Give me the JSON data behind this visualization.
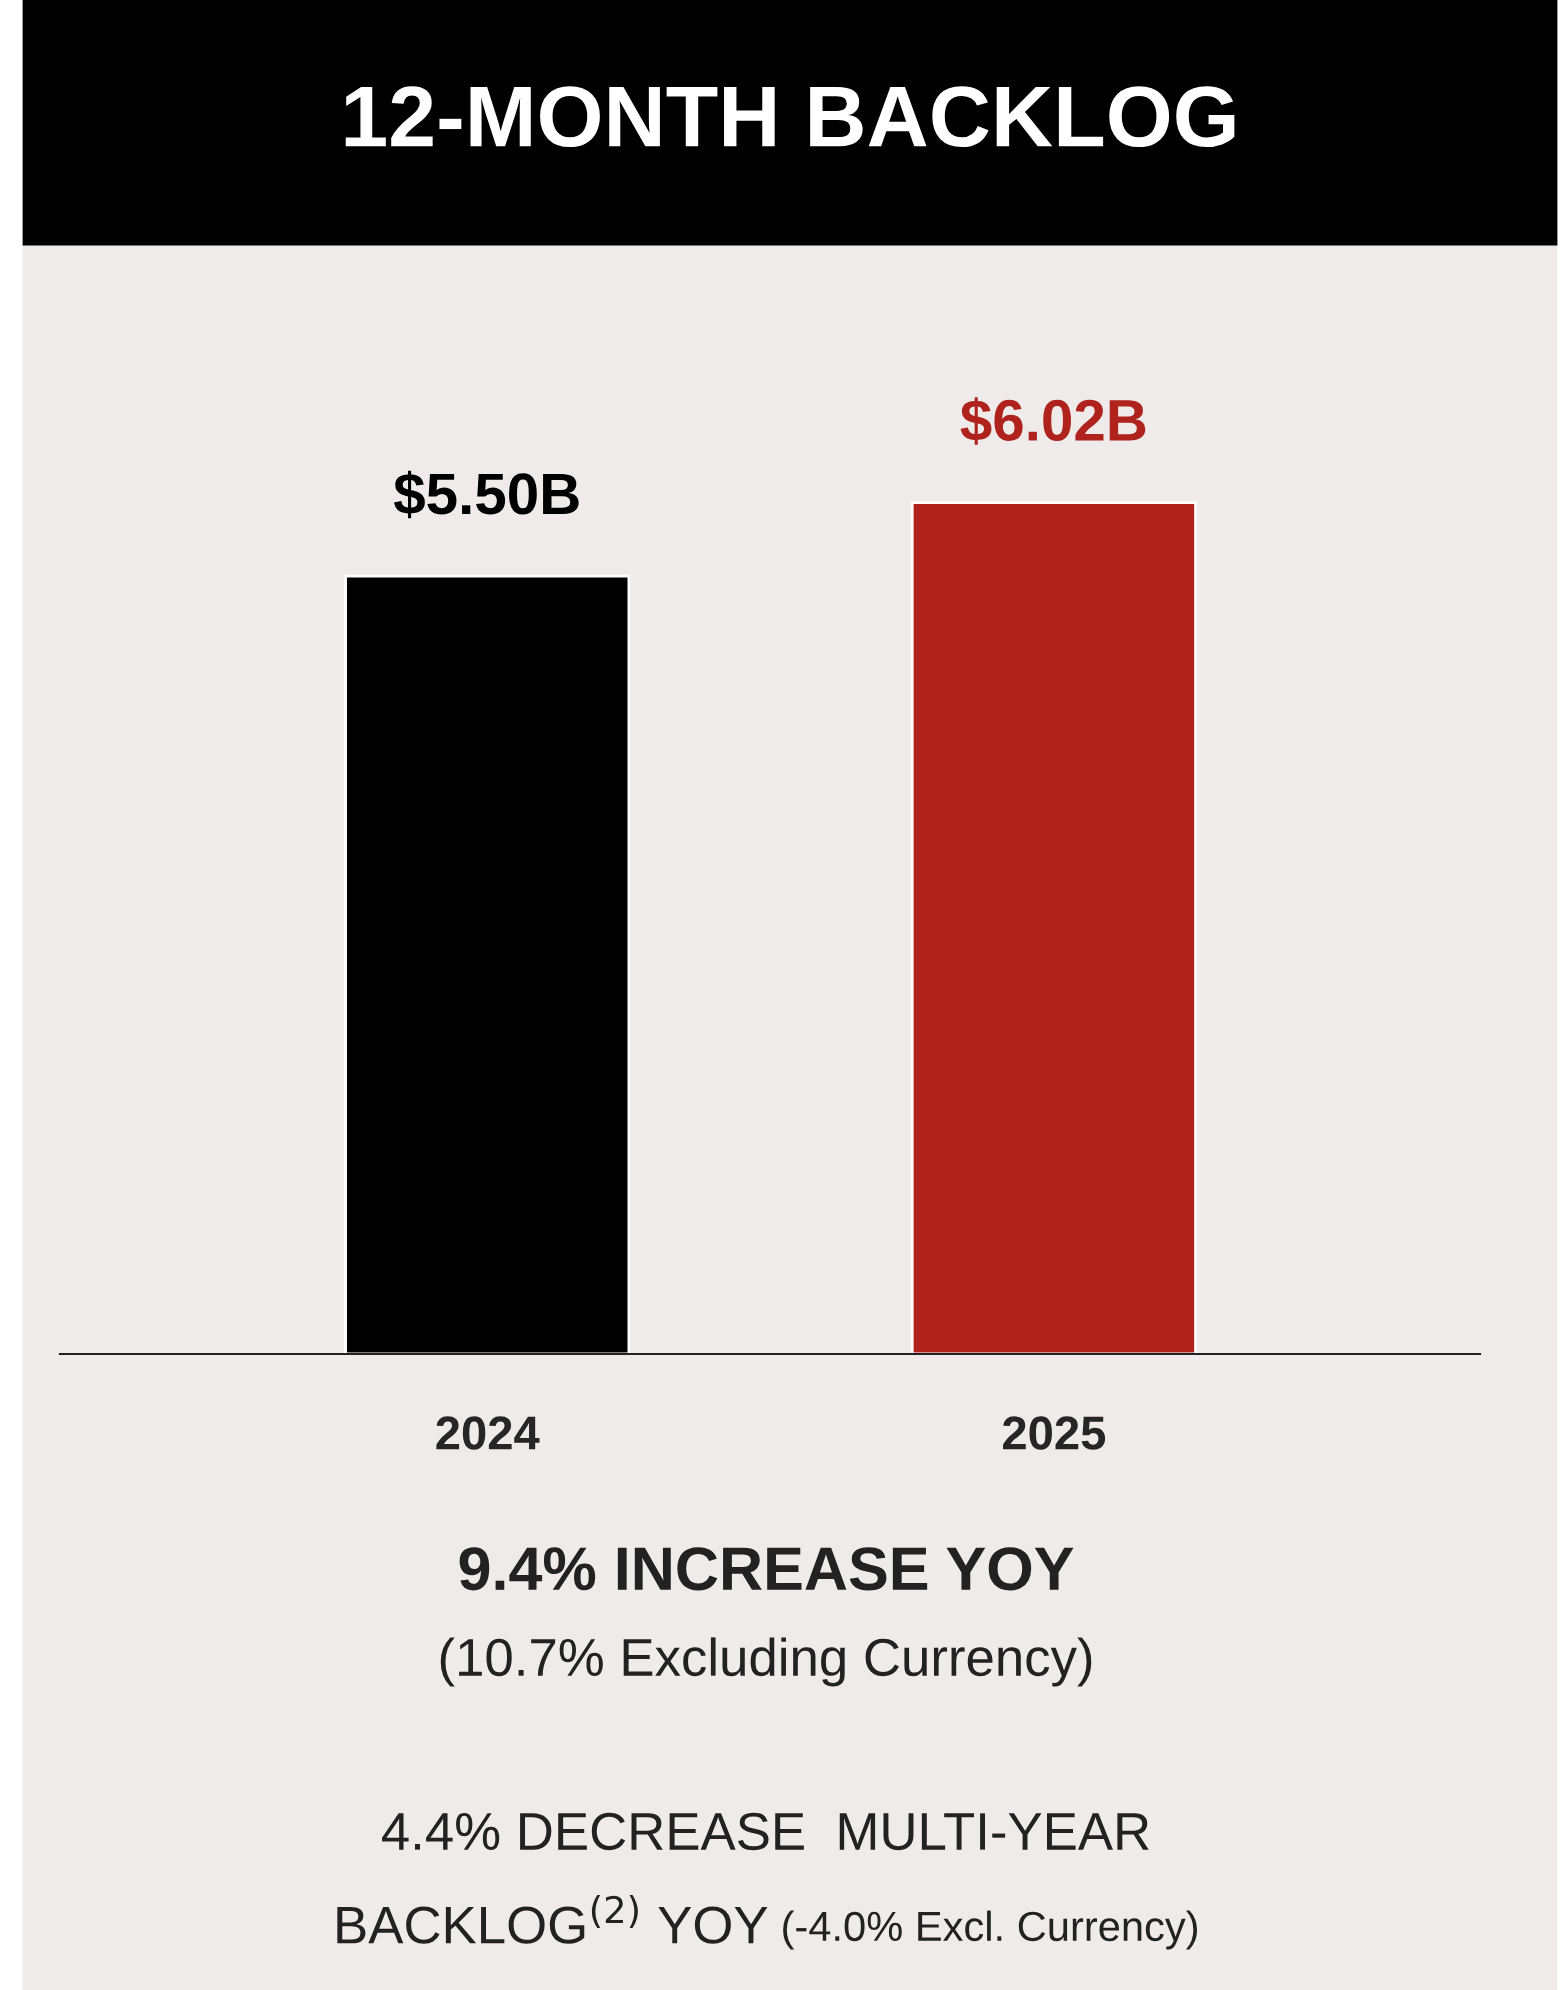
{
  "chart_data": {
    "type": "bar",
    "title": "12-MONTH BACKLOG",
    "categories": [
      "2024",
      "2025"
    ],
    "values": [
      5.5,
      6.02
    ],
    "colors": [
      "#000000",
      "#b0231c"
    ],
    "value_labels": [
      "$5.50B",
      "$6.02B"
    ],
    "tick_labels": "x",
    "grid": false,
    "legend": false,
    "annotations": [
      "9.4% INCREASE YOY",
      "(10.7% Excluding Currency)",
      "4.4% DECREASE  MULTI-YEAR",
      "BACKLOG$^{(2)}$ YOY",
      "(-4.0% Excl. Currency)"
    ]
  }
}
